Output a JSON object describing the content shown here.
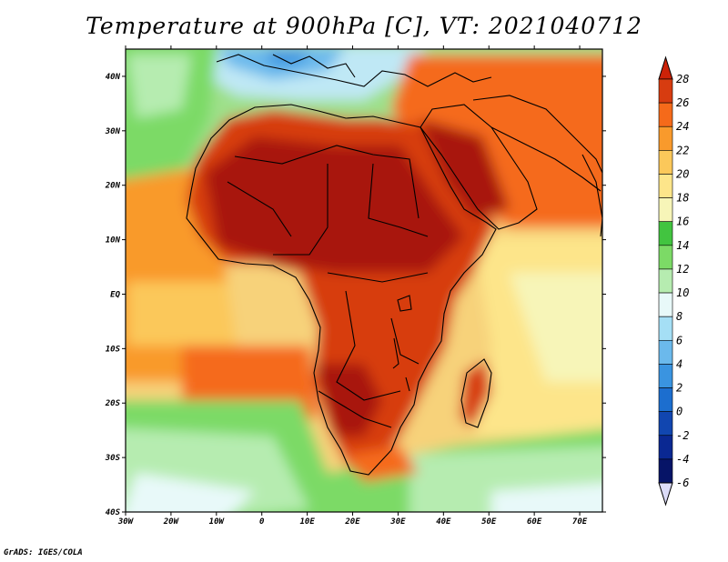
{
  "title": "Temperature at 900hPa [C], VT: 2021040712",
  "credit": "GrADS: IGES/COLA",
  "map": {
    "projection": "latlon",
    "lon_range": [
      -30,
      75
    ],
    "lat_range": [
      -40,
      45
    ],
    "lon_ticks": [
      {
        "value": -30,
        "label": "30W"
      },
      {
        "value": -20,
        "label": "20W"
      },
      {
        "value": -10,
        "label": "10W"
      },
      {
        "value": 0,
        "label": "0"
      },
      {
        "value": 10,
        "label": "10E"
      },
      {
        "value": 20,
        "label": "20E"
      },
      {
        "value": 30,
        "label": "30E"
      },
      {
        "value": 40,
        "label": "40E"
      },
      {
        "value": 50,
        "label": "50E"
      },
      {
        "value": 60,
        "label": "60E"
      },
      {
        "value": 70,
        "label": "70E"
      }
    ],
    "lat_ticks": [
      {
        "value": 40,
        "label": "40N"
      },
      {
        "value": 30,
        "label": "30N"
      },
      {
        "value": 20,
        "label": "20N"
      },
      {
        "value": 10,
        "label": "10N"
      },
      {
        "value": 0,
        "label": "EQ"
      },
      {
        "value": -10,
        "label": "10S"
      },
      {
        "value": -20,
        "label": "20S"
      },
      {
        "value": -30,
        "label": "30S"
      },
      {
        "value": -40,
        "label": "40S"
      }
    ]
  },
  "colorbar": {
    "labels": [
      "28",
      "26",
      "24",
      "22",
      "20",
      "18",
      "16",
      "14",
      "12",
      "10",
      "8",
      "6",
      "4",
      "2",
      "0",
      "-2",
      "-4",
      "-6"
    ],
    "colors": [
      "#a8190a",
      "#d73c10",
      "#f56a1a",
      "#f99a2c",
      "#fbc85a",
      "#fde58a",
      "#f7f5b8",
      "#42c440",
      "#7cda66",
      "#b6ecb0",
      "#e8f9f9",
      "#a5dff5",
      "#6bb9ec",
      "#3a94e0",
      "#1c6ecf",
      "#1146b0",
      "#0a2892",
      "#061467"
    ],
    "over_color": "#cc2208",
    "under_color": "#dcdcf8"
  }
}
